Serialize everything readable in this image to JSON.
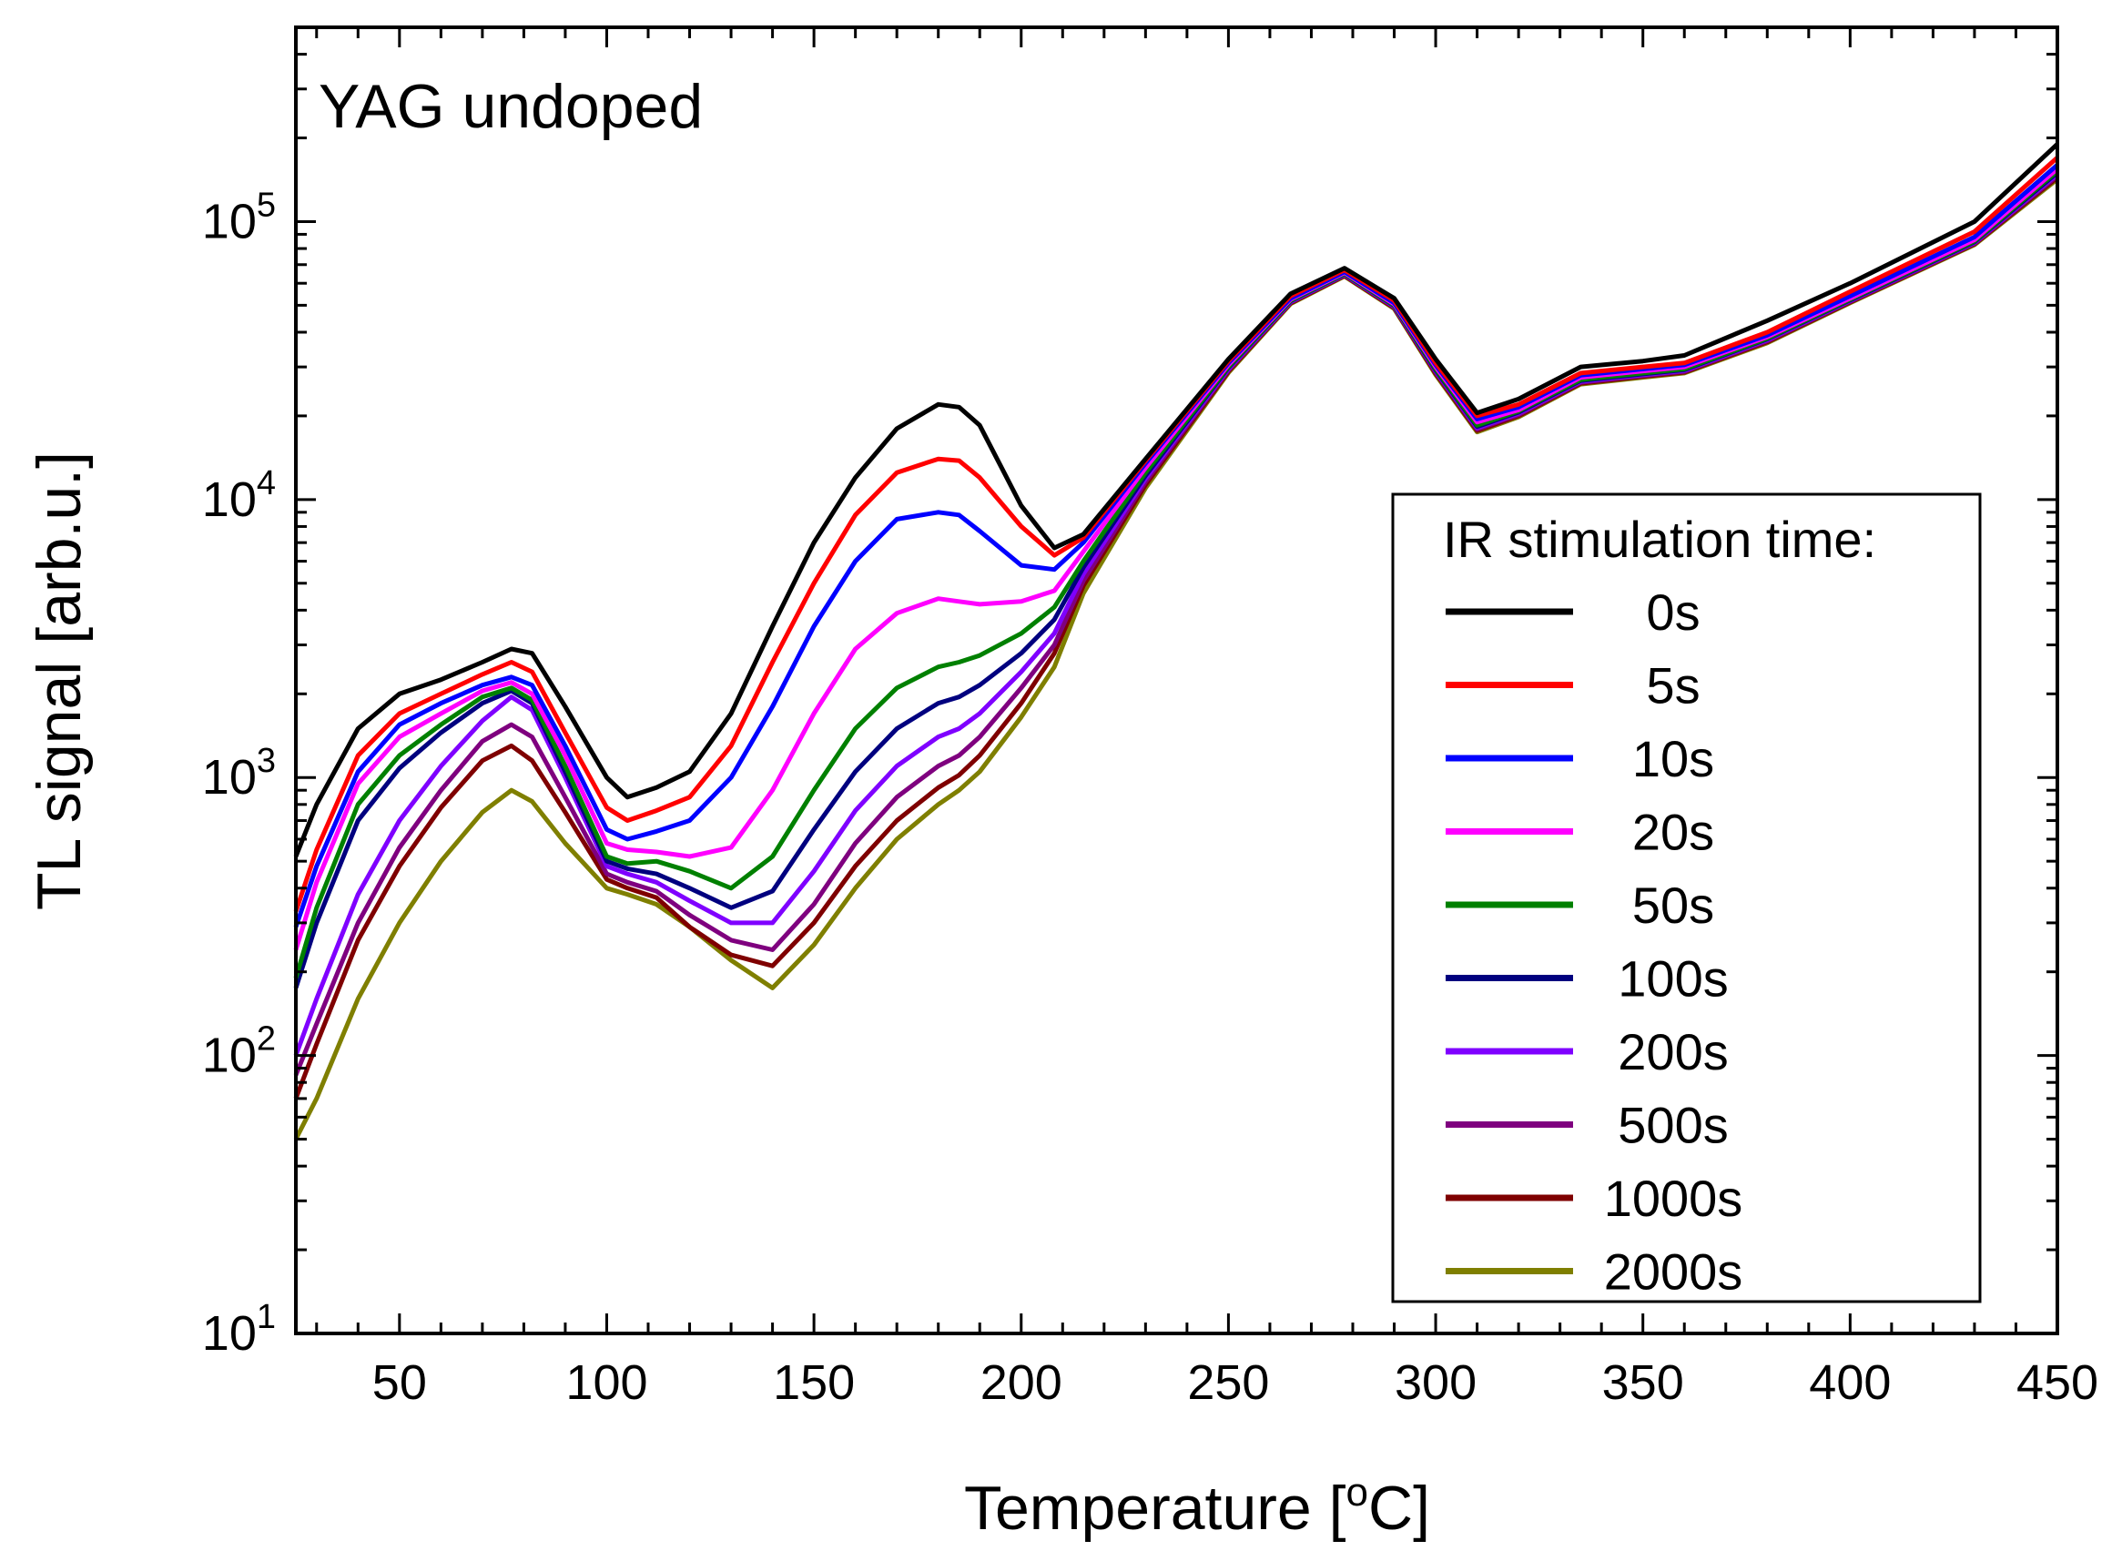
{
  "chart_data": {
    "type": "line",
    "annotation": "YAG undoped",
    "xlabel_main": "Temperature [",
    "xlabel_sup": "o",
    "xlabel_end": "C]",
    "ylabel": "TL signal [arb.u.]",
    "xlim": [
      25,
      450
    ],
    "ylim": [
      10,
      500000
    ],
    "yscale": "log",
    "xticks": [
      50,
      100,
      150,
      200,
      250,
      300,
      350,
      400,
      450
    ],
    "yticks": [
      {
        "base": "10",
        "exp": "1",
        "value": 10
      },
      {
        "base": "10",
        "exp": "2",
        "value": 100
      },
      {
        "base": "10",
        "exp": "3",
        "value": 1000
      },
      {
        "base": "10",
        "exp": "4",
        "value": 10000
      },
      {
        "base": "10",
        "exp": "5",
        "value": 100000
      }
    ],
    "legend_title": "IR stimulation time:",
    "legend_position": "right",
    "x": [
      25,
      30,
      40,
      50,
      60,
      70,
      77,
      82,
      90,
      100,
      105,
      112,
      120,
      130,
      140,
      150,
      160,
      170,
      180,
      185,
      190,
      200,
      208,
      215,
      230,
      250,
      265,
      278,
      290,
      300,
      310,
      320,
      335,
      350,
      360,
      380,
      400,
      430,
      450
    ],
    "series": [
      {
        "name": "0s",
        "color": "#000000",
        "values": [
          520,
          800,
          1500,
          2000,
          2250,
          2600,
          2900,
          2800,
          1800,
          1000,
          850,
          920,
          1050,
          1700,
          3500,
          7000,
          12000,
          18000,
          22000,
          21500,
          18500,
          9500,
          6700,
          7500,
          14000,
          32000,
          55000,
          68000,
          53000,
          32000,
          20500,
          23000,
          30000,
          31500,
          33000,
          44000,
          60000,
          100000,
          190000
        ]
      },
      {
        "name": "5s",
        "color": "#ff0000",
        "values": [
          330,
          550,
          1200,
          1700,
          2000,
          2350,
          2600,
          2400,
          1450,
          780,
          700,
          760,
          850,
          1300,
          2600,
          5000,
          8800,
          12500,
          14000,
          13800,
          12000,
          8000,
          6300,
          7300,
          13800,
          31500,
          54000,
          67000,
          52000,
          31000,
          20000,
          22000,
          28500,
          30000,
          31000,
          40000,
          56000,
          92000,
          170000
        ]
      },
      {
        "name": "10s",
        "color": "#0000ff",
        "values": [
          290,
          480,
          1050,
          1550,
          1850,
          2150,
          2300,
          2150,
          1300,
          650,
          600,
          640,
          700,
          1000,
          1800,
          3500,
          6000,
          8500,
          9000,
          8800,
          7700,
          5800,
          5600,
          7000,
          13500,
          31000,
          53000,
          66000,
          51000,
          30500,
          19500,
          21500,
          28000,
          29500,
          30500,
          39000,
          54000,
          88000,
          160000
        ]
      },
      {
        "name": "20s",
        "color": "#ff00ff",
        "values": [
          240,
          420,
          950,
          1400,
          1700,
          2050,
          2200,
          2000,
          1200,
          580,
          550,
          540,
          520,
          560,
          900,
          1700,
          2900,
          3900,
          4400,
          4300,
          4200,
          4300,
          4700,
          6500,
          13000,
          30500,
          52500,
          65500,
          50500,
          30000,
          19000,
          21000,
          27500,
          29000,
          30000,
          38500,
          53000,
          86000,
          155000
        ]
      },
      {
        "name": "50s",
        "color": "#008000",
        "values": [
          190,
          340,
          800,
          1200,
          1550,
          1950,
          2100,
          1900,
          1100,
          520,
          490,
          500,
          460,
          400,
          520,
          900,
          1500,
          2100,
          2500,
          2600,
          2750,
          3300,
          4100,
          6000,
          12500,
          30000,
          52000,
          65000,
          50000,
          29500,
          18500,
          20800,
          27000,
          28500,
          29500,
          38000,
          52500,
          85000,
          152000
        ]
      },
      {
        "name": "100s",
        "color": "#00007f",
        "values": [
          175,
          300,
          700,
          1080,
          1450,
          1850,
          2050,
          1850,
          1050,
          500,
          470,
          450,
          400,
          340,
          390,
          650,
          1050,
          1500,
          1850,
          1950,
          2150,
          2800,
          3700,
          5700,
          12200,
          29800,
          51800,
          64800,
          49800,
          29200,
          18300,
          20600,
          26800,
          28300,
          29300,
          37800,
          52200,
          84500,
          150000
        ]
      },
      {
        "name": "200s",
        "color": "#7f00ff",
        "values": [
          100,
          160,
          380,
          700,
          1100,
          1600,
          1950,
          1750,
          1000,
          480,
          450,
          420,
          360,
          300,
          300,
          460,
          760,
          1100,
          1400,
          1500,
          1700,
          2400,
          3300,
          5400,
          11900,
          29500,
          51500,
          64500,
          49500,
          29000,
          18100,
          20400,
          26600,
          28100,
          29100,
          37500,
          51900,
          84000,
          148000
        ]
      },
      {
        "name": "500s",
        "color": "#7f007f",
        "values": [
          85,
          130,
          300,
          560,
          900,
          1350,
          1550,
          1400,
          850,
          450,
          420,
          390,
          320,
          260,
          240,
          350,
          580,
          850,
          1100,
          1200,
          1400,
          2100,
          3000,
          5100,
          11600,
          29200,
          51200,
          64200,
          49200,
          28700,
          17900,
          20200,
          26400,
          27900,
          28900,
          37200,
          51600,
          83500,
          146000
        ]
      },
      {
        "name": "1000s",
        "color": "#7f0000",
        "values": [
          70,
          110,
          260,
          480,
          780,
          1150,
          1300,
          1150,
          750,
          430,
          400,
          370,
          290,
          230,
          210,
          300,
          480,
          700,
          920,
          1020,
          1200,
          1850,
          2800,
          4900,
          11300,
          28900,
          50900,
          63900,
          48900,
          28400,
          17700,
          20000,
          26200,
          27700,
          28700,
          36900,
          51300,
          83000,
          144000
        ]
      },
      {
        "name": "2000s",
        "color": "#7f7f00",
        "values": [
          50,
          70,
          160,
          300,
          500,
          750,
          900,
          820,
          580,
          400,
          380,
          350,
          290,
          220,
          175,
          250,
          400,
          600,
          800,
          900,
          1050,
          1650,
          2500,
          4600,
          11000,
          28600,
          50600,
          63600,
          48600,
          28100,
          17500,
          19800,
          26000,
          27500,
          28500,
          36600,
          51000,
          82500,
          142000
        ]
      }
    ]
  }
}
